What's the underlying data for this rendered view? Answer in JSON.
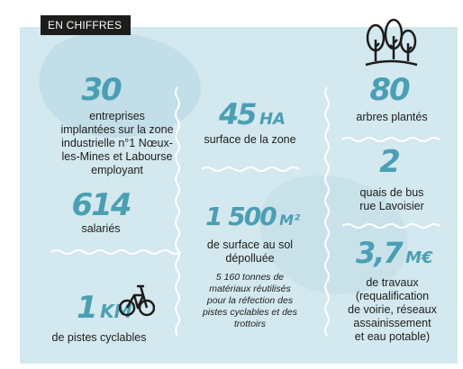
{
  "tag": "EN CHIFFRES",
  "colors": {
    "panel": "#d3e8ef",
    "accent": "#4b9fb3",
    "text": "#1d1d1b"
  },
  "icons": {
    "trees": "trees-icon",
    "bike": "bicycle-icon"
  },
  "col1": {
    "stat1_value": "30",
    "stat1_text": [
      "entreprises",
      "implantées sur la zone",
      "industrielle n°1 Nœux-",
      "les-Mines et Labourse",
      "employant"
    ],
    "stat2_value": "614",
    "stat2_text": "salariés",
    "stat3_value": "1",
    "stat3_unit": "KM",
    "stat3_text": "de pistes cyclables"
  },
  "col2": {
    "stat1_value": "45",
    "stat1_unit": "HA",
    "stat1_text": "surface de la zone",
    "stat2_value": "1 500",
    "stat2_unit": "M²",
    "stat2_text": [
      "de surface au sol",
      "dépolluée"
    ],
    "stat2_note": [
      "5 160 tonnes de",
      "matériaux réutilisés",
      "pour la réfection des",
      "pistes cyclables et des",
      "trottoirs"
    ]
  },
  "col3": {
    "stat1_value": "80",
    "stat1_text": "arbres plantés",
    "stat2_value": "2",
    "stat2_text": [
      "quais de bus",
      "rue Lavoisier"
    ],
    "stat3_value": "3,7",
    "stat3_unit": "M€",
    "stat3_text": [
      "de travaux",
      "(requalification",
      "de voirie, réseaux",
      "assainissement",
      "et eau potable)"
    ]
  }
}
